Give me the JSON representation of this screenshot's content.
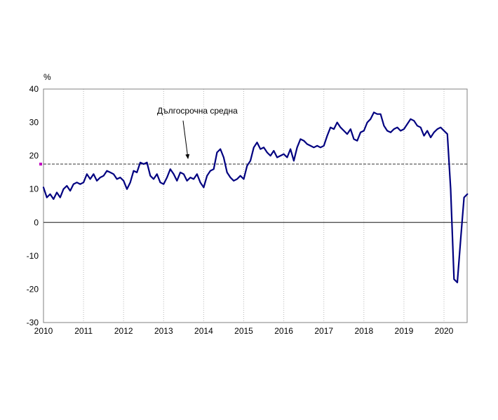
{
  "chart_data": {
    "type": "line",
    "title": "",
    "xlabel": "",
    "ylabel": "%",
    "ylim": [
      -30,
      40
    ],
    "yticks": [
      40,
      30,
      20,
      10,
      0,
      -10,
      -20,
      -30
    ],
    "xticks": [
      2010,
      2011,
      2012,
      2013,
      2014,
      2015,
      2016,
      2017,
      2018,
      2019,
      2020
    ],
    "x_start_year": 2010,
    "x_step_months": 1,
    "grid": "vertical-dotted",
    "legend": "none",
    "line_color": "#000080",
    "grid_color": "#b8b8b8",
    "border_color": "#808080",
    "zero_line_color": "#404040",
    "average_line": {
      "value": 17.5,
      "label": "Дългосрочна средна",
      "style": "dashed",
      "color": "#333333",
      "marker_color": "#c000c0"
    },
    "values": [
      10.5,
      7.5,
      8.5,
      7.0,
      9.0,
      7.5,
      10.0,
      11.0,
      9.5,
      11.5,
      12.0,
      11.5,
      12.0,
      14.5,
      13.0,
      14.5,
      12.5,
      13.5,
      14.0,
      15.5,
      15.0,
      14.5,
      13.0,
      13.5,
      12.5,
      10.0,
      12.0,
      15.5,
      15.0,
      18.0,
      17.5,
      18.0,
      14.0,
      13.0,
      14.5,
      12.0,
      11.5,
      13.5,
      16.0,
      14.5,
      12.5,
      15.0,
      14.5,
      12.5,
      13.5,
      13.0,
      14.5,
      12.0,
      10.5,
      14.0,
      15.5,
      16.0,
      21.0,
      22.0,
      19.5,
      15.0,
      13.5,
      12.5,
      13.0,
      14.0,
      13.0,
      17.0,
      18.5,
      22.5,
      24.0,
      22.0,
      22.5,
      21.0,
      20.0,
      21.5,
      19.5,
      20.0,
      20.5,
      19.5,
      22.0,
      18.5,
      22.5,
      25.0,
      24.5,
      23.5,
      23.0,
      22.5,
      23.0,
      22.5,
      23.0,
      26.0,
      28.5,
      28.0,
      30.0,
      28.5,
      27.5,
      26.5,
      28.0,
      25.0,
      24.5,
      27.0,
      27.5,
      30.0,
      31.0,
      33.0,
      32.5,
      32.5,
      29.0,
      27.5,
      27.0,
      28.0,
      28.5,
      27.5,
      28.0,
      29.5,
      31.0,
      30.5,
      29.0,
      28.5,
      26.0,
      27.5,
      25.5,
      27.0,
      28.0,
      28.5,
      27.5,
      26.5,
      10.0,
      -17.0,
      -18.0,
      -5.0,
      7.5,
      8.5
    ]
  }
}
